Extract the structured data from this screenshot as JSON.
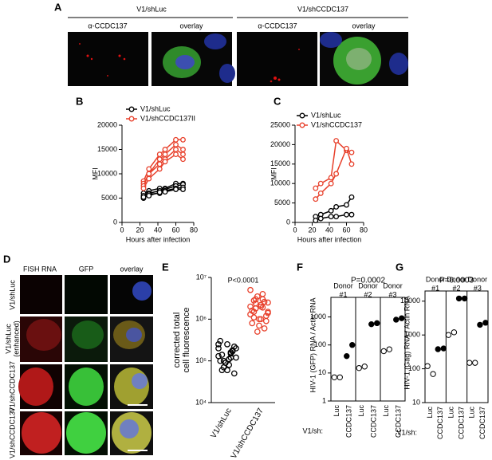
{
  "panel_a": {
    "letter": "A",
    "groups": [
      "V1/shLuc",
      "V1/shCCDC137"
    ],
    "columns": [
      "α-CCDC137",
      "overlay",
      "α-CCDC137",
      "overlay"
    ]
  },
  "panel_d": {
    "letter": "D",
    "columns": [
      "FISH RNA",
      "GFP",
      "overlay"
    ],
    "rows": [
      [
        "V1/shLuc"
      ],
      [
        "V1/shLuc",
        "(enhanced)"
      ],
      [
        "V1/shCCDC137"
      ],
      [
        "V1/shCCDC137"
      ]
    ]
  },
  "chart_data": [
    {
      "type": "line",
      "letter": "B",
      "x": [
        24,
        30,
        42,
        48,
        60,
        68
      ],
      "xlim": [
        0,
        80
      ],
      "xticks": [
        0,
        20,
        40,
        60,
        80
      ],
      "ylim": [
        0,
        20000
      ],
      "yticks": [
        0,
        5000,
        10000,
        15000,
        20000
      ],
      "xlabel": "Hours after infection",
      "ylabel": "MFI",
      "series": [
        {
          "name": "V1/shLuc",
          "color": "#000000",
          "values": [
            [
              6000,
              6500,
              7000,
              7000,
              8000,
              8000
            ],
            [
              5500,
              6000,
              6500,
              6800,
              7500,
              7800
            ],
            [
              5000,
              5800,
              6000,
              6500,
              7000,
              7200
            ],
            [
              5200,
              5500,
              6200,
              6300,
              6800,
              6800
            ]
          ]
        },
        {
          "name": "V1/shCCDC137II",
          "color": "#e8412c",
          "values": [
            [
              8500,
              11000,
              14000,
              15000,
              17000,
              17000
            ],
            [
              8000,
              10000,
              13000,
              14000,
              16000,
              15000
            ],
            [
              7500,
              10000,
              12000,
              13000,
              15000,
              14000
            ],
            [
              7000,
              9000,
              11000,
              12500,
              14000,
              13000
            ]
          ]
        }
      ]
    },
    {
      "type": "line",
      "letter": "C",
      "x": [
        24,
        30,
        42,
        48,
        60,
        66
      ],
      "xlim": [
        0,
        80
      ],
      "xticks": [
        0,
        20,
        40,
        60,
        80
      ],
      "ylim": [
        0,
        25000
      ],
      "yticks": [
        0,
        5000,
        10000,
        15000,
        20000,
        25000
      ],
      "xlabel": "Hours after infection",
      "ylabel": "MFI",
      "series": [
        {
          "name": "V1/shLuc",
          "color": "#000000",
          "values": [
            [
              1500,
              2000,
              3000,
              4000,
              4500,
              6500
            ],
            [
              500,
              1000,
              1500,
              1500,
              2000,
              2000
            ]
          ]
        },
        {
          "name": "V1/shCCDC137",
          "color": "#e8412c",
          "values": [
            [
              8800,
              10000,
              11500,
              21000,
              18500,
              18000
            ],
            [
              6000,
              7500,
              10000,
              12500,
              19000,
              15000
            ]
          ]
        }
      ]
    },
    {
      "type": "strip",
      "letter": "E",
      "categories": [
        "V1/shLuc",
        "V1/shCCDC137"
      ],
      "colors": [
        "#000000",
        "#e8412c"
      ],
      "ylim": [
        10000,
        10000000
      ],
      "log_y": true,
      "yticks": [
        {
          "value": 10000,
          "label": "10⁴"
        },
        {
          "value": 100000,
          "label": "10⁵"
        },
        {
          "value": 1000000,
          "label": "10⁶"
        },
        {
          "value": 10000000,
          "label": "10⁷"
        }
      ],
      "ylabel": [
        "corrected total",
        "cell fluorescence"
      ],
      "annotation": "P<0.0001",
      "values": [
        [
          200000,
          150000,
          100000,
          120000,
          80000,
          60000,
          50000,
          250000,
          300000,
          180000,
          90000,
          130000,
          160000,
          70000,
          200000,
          110000,
          140000,
          220000,
          60000,
          100000,
          170000,
          90000,
          250000,
          120000
        ],
        [
          5000000,
          4000000,
          3000000,
          2500000,
          2000000,
          1500000,
          1200000,
          1000000,
          800000,
          600000,
          500000,
          2000000,
          3000000,
          1800000,
          1400000,
          2200000,
          1100000,
          900000,
          700000,
          1600000,
          2600000,
          3500000,
          1300000,
          1900000,
          2400000,
          1500000,
          1000000,
          2800000
        ]
      ]
    },
    {
      "type": "dots",
      "letter": "F",
      "annotation": "P=0.0002",
      "ylabel": "HIV-1 (GFP) RNA / Actin RNA",
      "x_prefix": "V1/sh:",
      "groups": [
        {
          "label": "Donor",
          "number": "#1"
        },
        {
          "label": "Donor",
          "number": "#2"
        },
        {
          "label": "Donor",
          "number": "#3"
        }
      ],
      "categories": [
        "Luc",
        "CCDC137",
        "Luc",
        "CCDC137",
        "Luc",
        "CCDC137"
      ],
      "marker_fill": [
        "none",
        "#000000",
        "none",
        "#000000",
        "none",
        "#000000"
      ],
      "values": [
        [
          7,
          7
        ],
        [
          40,
          100
        ],
        [
          15,
          17
        ],
        [
          550,
          600
        ],
        [
          60,
          70
        ],
        [
          800,
          900
        ]
      ],
      "ylim": [
        1,
        5000
      ],
      "log_y": true,
      "yticks": [
        1,
        10,
        100,
        1000
      ]
    },
    {
      "type": "dots",
      "letter": "G",
      "annotation": "P=0.0003",
      "ylabel": "HIV-1 (Gag) RNA / Actin RNA",
      "x_prefix": "V1/sh:",
      "groups": [
        {
          "label": "Donor",
          "number": "#1"
        },
        {
          "label": "Donor",
          "number": "#2"
        },
        {
          "label": "Donor",
          "number": "#3"
        }
      ],
      "categories": [
        "Luc",
        "CCDC137",
        "Luc",
        "CCDC137",
        "Luc",
        "CCDC137"
      ],
      "marker_fill": [
        "none",
        "#000000",
        "none",
        "#000000",
        "none",
        "#000000"
      ],
      "values": [
        [
          120,
          70
        ],
        [
          380,
          400
        ],
        [
          1000,
          1200
        ],
        [
          12000,
          12000
        ],
        [
          150,
          150
        ],
        [
          2000,
          2300
        ]
      ],
      "ylim": [
        10,
        20000
      ],
      "log_y": true,
      "yticks": [
        10,
        100,
        1000,
        10000
      ]
    }
  ]
}
